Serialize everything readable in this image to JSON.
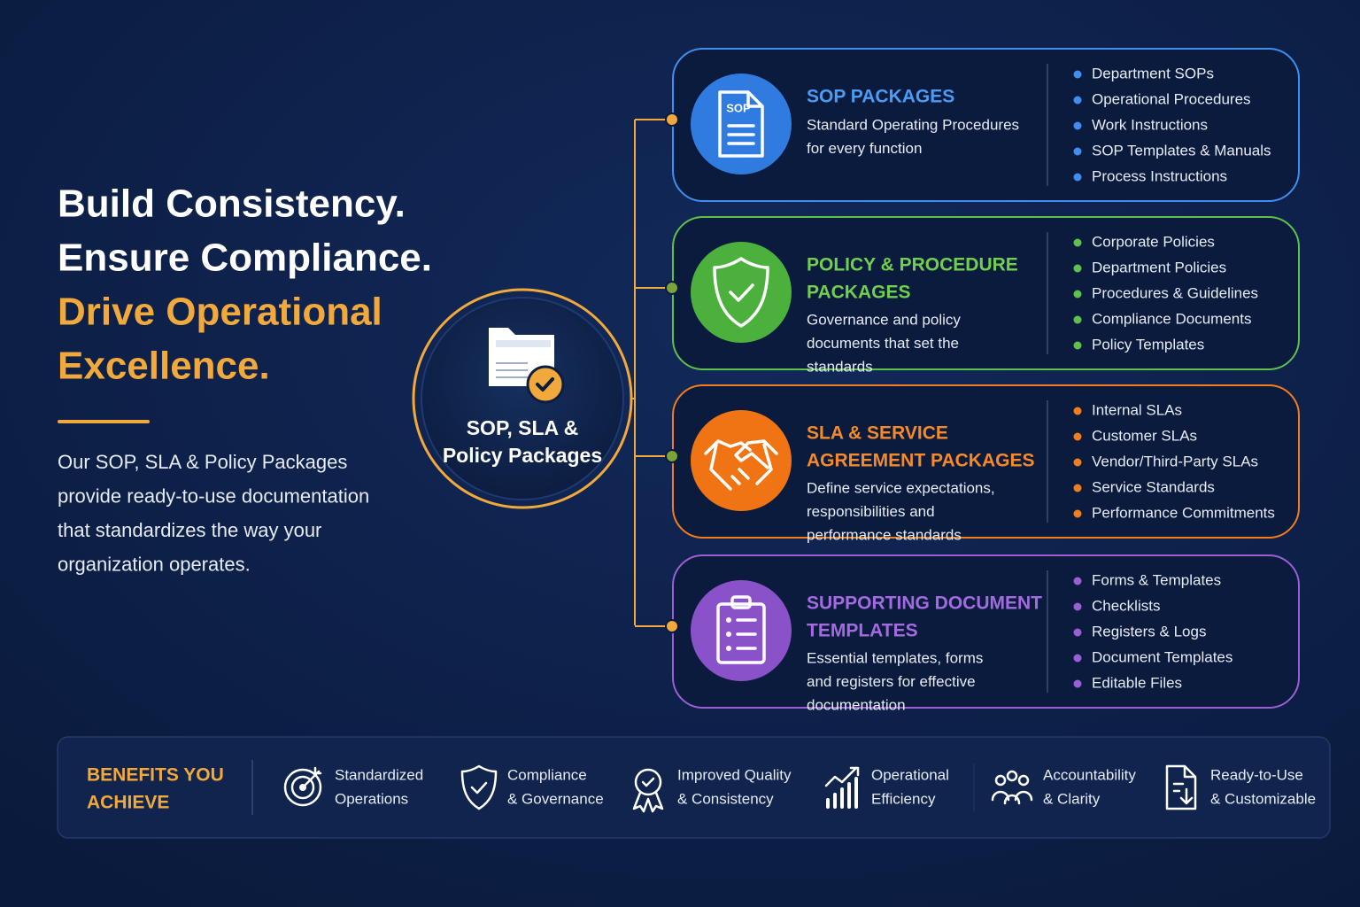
{
  "headline": {
    "lines": [
      "Build Consistency.",
      "Ensure Compliance.",
      "Drive Operational",
      "Excellence."
    ]
  },
  "intro": {
    "lines": [
      "Our SOP, SLA & Policy Packages",
      "provide ready-to-use documentation",
      "that standardizes the way your",
      "organization operates."
    ]
  },
  "hub": {
    "lines": [
      "SOP, SLA &",
      "Policy Packages"
    ]
  },
  "packages": [
    {
      "icon_label": "SOP",
      "title": [
        "SOP PACKAGES"
      ],
      "description": [
        "Standard Operating Procedures",
        "for every function"
      ],
      "items": [
        "Department SOPs",
        "Operational Procedures",
        "Work Instructions",
        "SOP Templates & Manuals",
        "Process Instructions"
      ]
    },
    {
      "title": [
        "POLICY & PROCEDURE",
        "PACKAGES"
      ],
      "description": [
        "Governance and policy",
        "documents that set the",
        "standards"
      ],
      "items": [
        "Corporate Policies",
        "Department Policies",
        "Procedures & Guidelines",
        "Compliance Documents",
        "Policy Templates"
      ]
    },
    {
      "title": [
        "SLA & SERVICE",
        "AGREEMENT PACKAGES"
      ],
      "description": [
        "Define service expectations,",
        "responsibilities and",
        "performance standards"
      ],
      "items": [
        "Internal SLAs",
        "Customer SLAs",
        "Vendor/Third-Party SLAs",
        "Service Standards",
        "Performance Commitments"
      ]
    },
    {
      "title": [
        "SUPPORTING DOCUMENT",
        "TEMPLATES"
      ],
      "description": [
        "Essential templates, forms",
        "and registers for effective",
        "documentation"
      ],
      "items": [
        "Forms & Templates",
        "Checklists",
        "Registers & Logs",
        "Document Templates",
        "Editable Files"
      ]
    }
  ],
  "benefits": {
    "title": [
      "BENEFITS YOU",
      "ACHIEVE"
    ],
    "items": [
      [
        "Standardized",
        "Operations"
      ],
      [
        "Compliance",
        "& Governance"
      ],
      [
        "Improved Quality",
        "& Consistency"
      ],
      [
        "Operational",
        "Efficiency"
      ],
      [
        "Accountability",
        "& Clarity"
      ],
      [
        "Ready-to-Use",
        "& Customizable"
      ]
    ]
  }
}
